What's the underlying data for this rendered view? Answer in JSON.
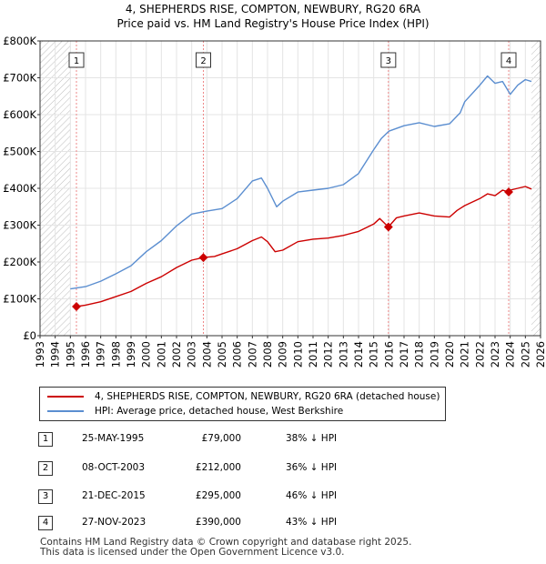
{
  "title_line1": "4, SHEPHERDS RISE, COMPTON, NEWBURY, RG20 6RA",
  "title_line2": "Price paid vs. HM Land Registry's House Price Index (HPI)",
  "chart_data": {
    "type": "line",
    "title": "4, SHEPHERDS RISE, COMPTON, NEWBURY, RG20 6RA",
    "subtitle": "Price paid vs. HM Land Registry's House Price Index (HPI)",
    "xlim": [
      1993,
      2026
    ],
    "ylim": [
      0,
      800000
    ],
    "x_ticks": [
      "1993",
      "1994",
      "1995",
      "1996",
      "1997",
      "1998",
      "1999",
      "2000",
      "2001",
      "2002",
      "2003",
      "2004",
      "2005",
      "2006",
      "2007",
      "2008",
      "2009",
      "2010",
      "2011",
      "2012",
      "2013",
      "2014",
      "2015",
      "2016",
      "2017",
      "2018",
      "2019",
      "2020",
      "2021",
      "2022",
      "2023",
      "2024",
      "2025",
      "2026"
    ],
    "y_ticks": [
      {
        "value": 0,
        "label": "£0"
      },
      {
        "value": 100000,
        "label": "£100K"
      },
      {
        "value": 200000,
        "label": "£200K"
      },
      {
        "value": 300000,
        "label": "£300K"
      },
      {
        "value": 400000,
        "label": "£400K"
      },
      {
        "value": 500000,
        "label": "£500K"
      },
      {
        "value": 600000,
        "label": "£600K"
      },
      {
        "value": 700000,
        "label": "£700K"
      },
      {
        "value": 800000,
        "label": "£800K"
      }
    ],
    "grid": true,
    "series": [
      {
        "name": "4, SHEPHERDS RISE, COMPTON, NEWBURY, RG20 6RA (detached house)",
        "color": "#cc0000",
        "points": [
          [
            1995.4,
            79000
          ],
          [
            1996,
            83000
          ],
          [
            1997,
            92000
          ],
          [
            1998,
            106000
          ],
          [
            1999,
            120000
          ],
          [
            2000,
            142000
          ],
          [
            2001,
            160000
          ],
          [
            2002,
            185000
          ],
          [
            2003,
            205000
          ],
          [
            2003.77,
            212000
          ],
          [
            2004.5,
            215000
          ],
          [
            2005,
            222000
          ],
          [
            2006,
            236000
          ],
          [
            2007,
            258000
          ],
          [
            2007.6,
            268000
          ],
          [
            2008,
            255000
          ],
          [
            2008.5,
            228000
          ],
          [
            2009,
            232000
          ],
          [
            2010,
            255000
          ],
          [
            2011,
            262000
          ],
          [
            2012,
            265000
          ],
          [
            2013,
            272000
          ],
          [
            2014,
            283000
          ],
          [
            2015,
            303000
          ],
          [
            2015.4,
            318000
          ],
          [
            2015.97,
            295000
          ],
          [
            2016.5,
            320000
          ],
          [
            2017,
            325000
          ],
          [
            2018,
            333000
          ],
          [
            2019,
            325000
          ],
          [
            2020,
            322000
          ],
          [
            2020.5,
            340000
          ],
          [
            2021,
            353000
          ],
          [
            2022,
            372000
          ],
          [
            2022.5,
            385000
          ],
          [
            2023,
            380000
          ],
          [
            2023.5,
            395000
          ],
          [
            2023.9,
            390000
          ],
          [
            2024,
            395000
          ],
          [
            2024.5,
            400000
          ],
          [
            2025,
            405000
          ],
          [
            2025.4,
            398000
          ]
        ]
      },
      {
        "name": "HPI: Average price, detached house, West Berkshire",
        "color": "#5b8ed0",
        "points": [
          [
            1995,
            127000
          ],
          [
            1996,
            133000
          ],
          [
            1997,
            148000
          ],
          [
            1998,
            168000
          ],
          [
            1999,
            190000
          ],
          [
            2000,
            228000
          ],
          [
            2001,
            258000
          ],
          [
            2002,
            298000
          ],
          [
            2003,
            330000
          ],
          [
            2004,
            338000
          ],
          [
            2005,
            345000
          ],
          [
            2006,
            372000
          ],
          [
            2007,
            420000
          ],
          [
            2007.6,
            428000
          ],
          [
            2008,
            400000
          ],
          [
            2008.6,
            350000
          ],
          [
            2009,
            365000
          ],
          [
            2010,
            390000
          ],
          [
            2011,
            395000
          ],
          [
            2012,
            400000
          ],
          [
            2013,
            410000
          ],
          [
            2014,
            440000
          ],
          [
            2015,
            505000
          ],
          [
            2015.5,
            535000
          ],
          [
            2016,
            555000
          ],
          [
            2017,
            570000
          ],
          [
            2018,
            578000
          ],
          [
            2019,
            568000
          ],
          [
            2020,
            575000
          ],
          [
            2020.7,
            605000
          ],
          [
            2021,
            635000
          ],
          [
            2022,
            680000
          ],
          [
            2022.5,
            705000
          ],
          [
            2023,
            685000
          ],
          [
            2023.5,
            690000
          ],
          [
            2024,
            655000
          ],
          [
            2024.5,
            680000
          ],
          [
            2025,
            695000
          ],
          [
            2025.4,
            690000
          ]
        ]
      }
    ],
    "transactions": [
      {
        "label": "1",
        "x": 1995.4,
        "price": 79000,
        "date": "25-MAY-1995",
        "price_label": "£79,000",
        "hpi": "38% ↓ HPI"
      },
      {
        "label": "2",
        "x": 2003.77,
        "price": 212000,
        "date": "08-OCT-2003",
        "price_label": "£212,000",
        "hpi": "36% ↓ HPI"
      },
      {
        "label": "3",
        "x": 2015.97,
        "price": 295000,
        "date": "21-DEC-2015",
        "price_label": "£295,000",
        "hpi": "46% ↓ HPI"
      },
      {
        "label": "4",
        "x": 2023.9,
        "price": 390000,
        "date": "27-NOV-2023",
        "price_label": "£390,000",
        "hpi": "43% ↓ HPI"
      }
    ],
    "hatch_before": 1995.0,
    "hatch_after": 2025.4
  },
  "legend": {
    "red_label": "4, SHEPHERDS RISE, COMPTON, NEWBURY, RG20 6RA (detached house)",
    "blue_label": "HPI: Average price, detached house, West Berkshire",
    "red_color": "#cc0000",
    "blue_color": "#5b8ed0"
  },
  "footer": {
    "line1": "Contains HM Land Registry data © Crown copyright and database right 2025.",
    "line2": "This data is licensed under the Open Government Licence v3.0."
  }
}
